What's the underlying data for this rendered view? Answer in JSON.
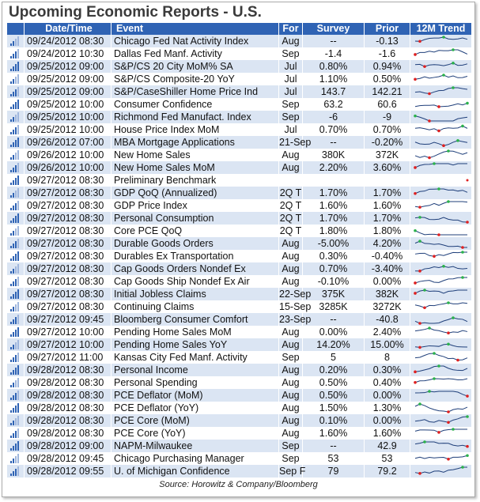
{
  "title": "Upcoming Economic Reports - U.S.",
  "columns": [
    "Date/Time",
    "Event",
    "For",
    "Survey",
    "Prior",
    "12M Trend"
  ],
  "rows": [
    [
      "09/24/2012 08:30",
      "Chicago Fed Nat Activity Index",
      "Aug",
      "--",
      "-0.13"
    ],
    [
      "09/24/2012 10:30",
      "Dallas Fed Manf. Activity",
      "Sep",
      "-1.4",
      "-1.6"
    ],
    [
      "09/25/2012 09:00",
      "S&P/CS 20 City MoM% SA",
      "Jul",
      "0.80%",
      "0.94%"
    ],
    [
      "09/25/2012 09:00",
      "S&P/CS Composite-20 YoY",
      "Jul",
      "1.10%",
      "0.50%"
    ],
    [
      "09/25/2012 09:00",
      "S&P/CaseShiller Home Price Ind",
      "Jul",
      "143.7",
      "142.21"
    ],
    [
      "09/25/2012 10:00",
      "Consumer Confidence",
      "Sep",
      "63.2",
      "60.6"
    ],
    [
      "09/25/2012 10:00",
      "Richmond Fed Manufact. Index",
      "Sep",
      "-6",
      "-9"
    ],
    [
      "09/25/2012 10:00",
      "House Price Index MoM",
      "Jul",
      "0.70%",
      "0.70%"
    ],
    [
      "09/26/2012 07:00",
      "MBA Mortgage Applications",
      "21-Sep",
      "--",
      "-0.20%"
    ],
    [
      "09/26/2012 10:00",
      "New Home Sales",
      "Aug",
      "380K",
      "372K"
    ],
    [
      "09/26/2012 10:00",
      "New Home Sales MoM",
      "Aug",
      "2.20%",
      "3.60%"
    ],
    [
      "09/27/2012 08:30",
      "Preliminary Benchmark",
      null,
      null,
      null
    ],
    [
      "09/27/2012 08:30",
      "GDP QoQ (Annualized)",
      "2Q T",
      "1.70%",
      "1.70%"
    ],
    [
      "09/27/2012 08:30",
      "GDP Price Index",
      "2Q T",
      "1.60%",
      "1.60%"
    ],
    [
      "09/27/2012 08:30",
      "Personal Consumption",
      "2Q T",
      "1.70%",
      "1.70%"
    ],
    [
      "09/27/2012 08:30",
      "Core PCE QoQ",
      "2Q T",
      "1.80%",
      "1.80%"
    ],
    [
      "09/27/2012 08:30",
      "Durable Goods Orders",
      "Aug",
      "-5.00%",
      "4.20%"
    ],
    [
      "09/27/2012 08:30",
      "Durables Ex Transportation",
      "Aug",
      "0.30%",
      "-0.40%"
    ],
    [
      "09/27/2012 08:30",
      "Cap Goods Orders Nondef Ex",
      "Aug",
      "0.70%",
      "-3.40%"
    ],
    [
      "09/27/2012 08:30",
      "Cap Goods Ship Nondef Ex Air",
      "Aug",
      "-0.10%",
      "0.00%"
    ],
    [
      "09/27/2012 08:30",
      "Initial Jobless Claims",
      "22-Sep",
      "375K",
      "382K"
    ],
    [
      "09/27/2012 08:30",
      "Continuing Claims",
      "15-Sep",
      "3285K",
      "3272K"
    ],
    [
      "09/27/2012 09:45",
      "Bloomberg Consumer Comfort",
      "23-Sep",
      "--",
      "-40.8"
    ],
    [
      "09/27/2012 10:00",
      "Pending Home Sales MoM",
      "Aug",
      "0.00%",
      "2.40%"
    ],
    [
      "09/27/2012 10:00",
      "Pending Home Sales YoY",
      "Aug",
      "14.20%",
      "15.00%"
    ],
    [
      "09/27/2012 11:00",
      "Kansas City Fed Manf. Activity",
      "Sep",
      "5",
      "8"
    ],
    [
      "09/28/2012 08:30",
      "Personal Income",
      "Aug",
      "0.20%",
      "0.30%"
    ],
    [
      "09/28/2012 08:30",
      "Personal Spending",
      "Aug",
      "0.50%",
      "0.40%"
    ],
    [
      "09/28/2012 08:30",
      "PCE Deflator (MoM)",
      "Aug",
      "0.50%",
      "0.00%"
    ],
    [
      "09/28/2012 08:30",
      "PCE Deflator (YoY)",
      "Aug",
      "1.50%",
      "1.30%"
    ],
    [
      "09/28/2012 08:30",
      "PCE Core (MoM)",
      "Aug",
      "0.10%",
      "0.00%"
    ],
    [
      "09/28/2012 08:30",
      "PCE Core (YoY)",
      "Aug",
      "1.60%",
      "1.60%"
    ],
    [
      "09/28/2012 09:00",
      "NAPM-Milwaukee",
      "Sep",
      "--",
      "42.9"
    ],
    [
      "09/28/2012 09:45",
      "Chicago Purchasing Manager",
      "Sep",
      "53",
      "53"
    ],
    [
      "09/28/2012 09:55",
      "U. of Michigan Confidence",
      "Sep F",
      "79",
      "79.2"
    ]
  ],
  "source": "Source: Horowitz & Company/Bloomberg"
}
